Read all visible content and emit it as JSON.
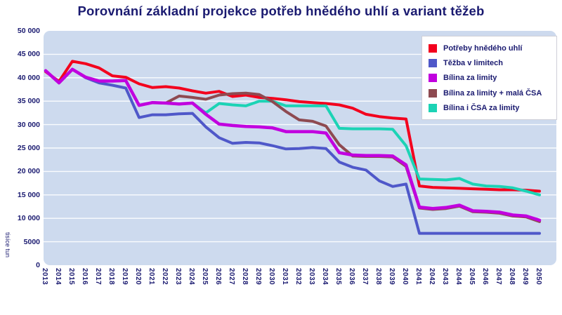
{
  "title": "Porovnání základní projekce potřeb hnědého uhlí a variant těžeb",
  "colors": {
    "page_bg": "#ffffff",
    "plot_bg": "#cddaee",
    "gridline": "#ffffff",
    "text_navy": "#1a1a70",
    "legend_border": "#cfcfd8"
  },
  "y_axis": {
    "title": "tisíce tun",
    "tick_labels": [
      "50 000",
      "45 000",
      "40 000",
      "35 000",
      "30 000",
      "25 000",
      "20 000",
      "15 000",
      "10 000",
      "5000",
      "0"
    ],
    "tick_values": [
      50000,
      45000,
      40000,
      35000,
      30000,
      25000,
      20000,
      15000,
      10000,
      5000,
      0
    ]
  },
  "x_axis": {
    "labels": [
      "2013",
      "2014",
      "2015",
      "2016",
      "2017",
      "2018",
      "2019",
      "2020",
      "2021",
      "2022",
      "2023",
      "2024",
      "2025",
      "2026",
      "2027",
      "2028",
      "2029",
      "2030",
      "2031",
      "2032",
      "2033",
      "2034",
      "2035",
      "2036",
      "2037",
      "2038",
      "2039",
      "2040",
      "2041",
      "2042",
      "2043",
      "2044",
      "2045",
      "2046",
      "2047",
      "2048",
      "2049",
      "2050"
    ]
  },
  "chart_data": {
    "type": "line",
    "x": [
      2013,
      2014,
      2015,
      2016,
      2017,
      2018,
      2019,
      2020,
      2021,
      2022,
      2023,
      2024,
      2025,
      2026,
      2027,
      2028,
      2029,
      2030,
      2031,
      2032,
      2033,
      2034,
      2035,
      2036,
      2037,
      2038,
      2039,
      2040,
      2041,
      2042,
      2043,
      2044,
      2045,
      2046,
      2047,
      2048,
      2049,
      2050
    ],
    "xlabel": "",
    "ylabel": "tisíce tun",
    "ylim": [
      0,
      50000
    ],
    "grid": true,
    "legend_position": "top-right",
    "draw_order": [
      0,
      1,
      4,
      3,
      2
    ],
    "series": [
      {
        "name": "Potřeby hnědého uhlí",
        "color": "#f3001d",
        "values": [
          41300,
          39200,
          43500,
          43000,
          42100,
          40400,
          40100,
          38700,
          37900,
          38100,
          37800,
          37200,
          36700,
          37100,
          36000,
          36300,
          35800,
          35600,
          35300,
          34900,
          34700,
          34500,
          34200,
          33500,
          32200,
          31700,
          31400,
          31200,
          16900,
          16600,
          16500,
          16400,
          16300,
          16200,
          16100,
          16100,
          16000,
          15800
        ]
      },
      {
        "name": "Těžba v limitech",
        "color": "#4f58c9",
        "values": [
          41500,
          38900,
          41800,
          40000,
          38900,
          38400,
          37800,
          31500,
          32100,
          32100,
          32300,
          32400,
          29500,
          27200,
          26000,
          26200,
          26100,
          25500,
          24800,
          24900,
          25100,
          24900,
          22000,
          20900,
          20300,
          18000,
          16800,
          17300,
          6800,
          6800,
          6800,
          6800,
          6800,
          6800,
          6800,
          6800,
          6800,
          6800
        ]
      },
      {
        "name": "Bílina za limity",
        "color": "#c100df",
        "values": [
          41500,
          38900,
          41800,
          40100,
          39300,
          39300,
          39400,
          34100,
          34700,
          34600,
          34400,
          34600,
          32200,
          30100,
          29800,
          29600,
          29500,
          29300,
          28500,
          28500,
          28500,
          28200,
          24000,
          23500,
          23400,
          23400,
          23300,
          21400,
          12400,
          12100,
          12300,
          12800,
          11600,
          11500,
          11300,
          10700,
          10500,
          9600
        ]
      },
      {
        "name": "Bílina za limity + malá ČSA",
        "color": "#8e4a51",
        "values": [
          41500,
          38900,
          41800,
          40100,
          39300,
          39300,
          39400,
          34100,
          34700,
          34600,
          36100,
          35800,
          35400,
          36300,
          36600,
          36700,
          36400,
          34900,
          32800,
          31000,
          30700,
          29700,
          25700,
          23300,
          23200,
          23200,
          23100,
          21100,
          12200,
          11900,
          12100,
          12600,
          11400,
          11300,
          11100,
          10500,
          10300,
          9300
        ]
      },
      {
        "name": "Bílina i ČSA za limity",
        "color": "#1cd3b5",
        "values": [
          41500,
          38900,
          41800,
          40100,
          39300,
          39300,
          39400,
          34100,
          34700,
          34600,
          34400,
          34600,
          32500,
          34500,
          34200,
          34000,
          35000,
          35000,
          34000,
          34000,
          34000,
          34000,
          29200,
          29100,
          29100,
          29100,
          29000,
          25500,
          18400,
          18300,
          18200,
          18500,
          17300,
          16900,
          16800,
          16500,
          15800,
          15000
        ]
      }
    ]
  }
}
